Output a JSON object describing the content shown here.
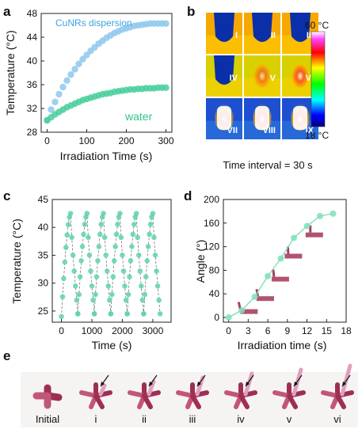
{
  "panels": {
    "a": "a",
    "b": "b",
    "c": "c",
    "d": "d",
    "e": "e"
  },
  "chart_data": [
    {
      "type": "scatter",
      "panel": "a",
      "xlabel": "Irradiation Time (s)",
      "ylabel": "Temperature (°C)",
      "xlim": [
        -15,
        315
      ],
      "ylim": [
        28,
        48
      ],
      "xticks": [
        0,
        100,
        200,
        300
      ],
      "yticks": [
        28,
        32,
        36,
        40,
        44,
        48
      ],
      "series": [
        {
          "name": "CuNRs dispersion",
          "color": "#8ec8ef",
          "x": [
            0,
            10,
            20,
            30,
            40,
            50,
            60,
            70,
            80,
            90,
            100,
            110,
            120,
            130,
            140,
            150,
            160,
            170,
            180,
            190,
            200,
            210,
            220,
            230,
            240,
            250,
            260,
            270,
            280,
            290,
            300
          ],
          "values": [
            30.0,
            31.8,
            33.1,
            34.4,
            35.6,
            36.7,
            37.7,
            38.6,
            39.5,
            40.3,
            41.0,
            41.7,
            42.3,
            42.9,
            43.4,
            43.9,
            44.3,
            44.7,
            45.0,
            45.3,
            45.5,
            45.7,
            45.9,
            46.0,
            46.1,
            46.2,
            46.3,
            46.3,
            46.3,
            46.3,
            46.3
          ]
        },
        {
          "name": "water",
          "color": "#46cf9c",
          "x": [
            0,
            10,
            20,
            30,
            40,
            50,
            60,
            70,
            80,
            90,
            100,
            110,
            120,
            130,
            140,
            150,
            160,
            170,
            180,
            190,
            200,
            210,
            220,
            230,
            240,
            250,
            260,
            270,
            280,
            290,
            300
          ],
          "values": [
            30.0,
            30.5,
            31.0,
            31.4,
            31.8,
            32.2,
            32.5,
            32.8,
            33.1,
            33.4,
            33.6,
            33.8,
            34.0,
            34.2,
            34.4,
            34.5,
            34.6,
            34.8,
            34.9,
            35.0,
            35.1,
            35.2,
            35.2,
            35.3,
            35.3,
            35.4,
            35.4,
            35.4,
            35.5,
            35.5,
            35.5
          ]
        }
      ]
    },
    {
      "type": "heatmap",
      "panel": "b",
      "labels": [
        "I",
        "II",
        "III",
        "IV",
        "V",
        "VI",
        "VII",
        "VIII",
        "IX"
      ],
      "scale_max": "60 °C",
      "scale_min": "18 °C",
      "caption": "Time interval = 30 s",
      "hot_level": [
        0.25,
        0.22,
        0.35,
        0.4,
        0.55,
        0.75,
        0.82,
        0.92,
        0.97
      ]
    },
    {
      "type": "line",
      "panel": "c",
      "xlabel": "Time (s)",
      "ylabel": "Temperature (°C)",
      "xlim": [
        -300,
        3600
      ],
      "ylim": [
        23,
        45
      ],
      "xticks": [
        0,
        1000,
        2000,
        3000
      ],
      "yticks": [
        25,
        30,
        35,
        40,
        45
      ],
      "color": "#5fd3a8",
      "cycles": 6,
      "cycle_period": 540,
      "heat_duration": 300,
      "t_min": 24.5,
      "t_max": 42.5,
      "first_start": 24.0
    },
    {
      "type": "line",
      "panel": "d",
      "xlabel": "Irradiation time (s)",
      "ylabel": "Angle (°)",
      "xlim": [
        -0.8,
        18
      ],
      "ylim": [
        -8,
        200
      ],
      "xticks": [
        0,
        3,
        6,
        9,
        12,
        15,
        18
      ],
      "yticks": [
        0,
        40,
        80,
        120,
        160,
        200
      ],
      "color": "#7fe0b5",
      "x": [
        0,
        2,
        4,
        6,
        8,
        10,
        12,
        14,
        16
      ],
      "values": [
        0,
        12,
        35,
        70,
        100,
        135,
        155,
        172,
        176
      ]
    }
  ],
  "photos": {
    "labels": [
      "Initial",
      "i",
      "ii",
      "iii",
      "iv",
      "v",
      "vi"
    ]
  }
}
